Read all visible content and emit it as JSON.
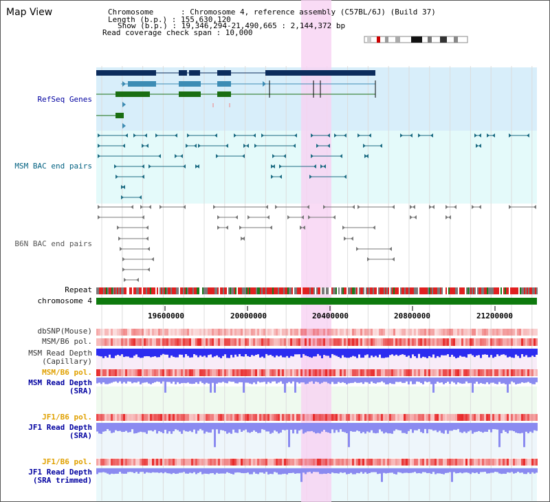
{
  "title": "Map View",
  "info": {
    "chromosome": "Chromosome      : Chromosome 4, reference assembly (C57BL/6J) (Build 37)",
    "length": "Length (b.p.) : 155,630,120",
    "show": "Show (b.p.) : 19,346,294-21,490,665 : 2,144,372 bp",
    "coverage": "Read coverage check span : 10,000"
  },
  "tracks": {
    "refseq": "RefSeq Genes",
    "msm_bac": "MSM BAC end pairs",
    "b6n_bac": "B6N BAC end pairs",
    "repeat": "Repeat",
    "chromosome": "chromosome 4",
    "dbsnp": "dbSNP(Mouse)",
    "msm_b6_pol_1": "MSM/B6 pol.",
    "msm_depth_cap_1": "MSM Read Depth",
    "msm_depth_cap_2": "(Capillary)",
    "msm_b6_pol_2": "MSM/B6 pol.",
    "msm_depth_sra_1": "MSM Read Depth",
    "msm_depth_sra_2": "(SRA)",
    "jf1_b6_pol_1": "JF1/B6 pol.",
    "jf1_depth_sra_1": "JF1 Read Depth",
    "jf1_depth_sra_2": "(SRA)",
    "jf1_b6_pol_2": "JF1/B6 pol.",
    "jf1_depth_trim_1": "JF1 Read Depth",
    "jf1_depth_trim_2": "(SRA trimmed)"
  },
  "ruler": [
    "19600000",
    "20000000",
    "20400000",
    "20800000",
    "21200000"
  ],
  "colors": {
    "refseq_bg": "#d8eefa",
    "bac_bg": "#e4fafa",
    "highlight": "#f7d2f2",
    "gene_dark": "#0c2c5c",
    "gene_mid": "#3d8cb4",
    "gene_green": "#1a6e12",
    "bac_teal": "#1b6b82",
    "bac_gray": "#777777",
    "chrom_green": "#0e7a0e",
    "label_blue": "#0000a0",
    "label_teal": "#006080",
    "label_orange": "#e0a000",
    "depth_blue": "#2c2cf0",
    "depth_light": "#8a8af0"
  }
}
